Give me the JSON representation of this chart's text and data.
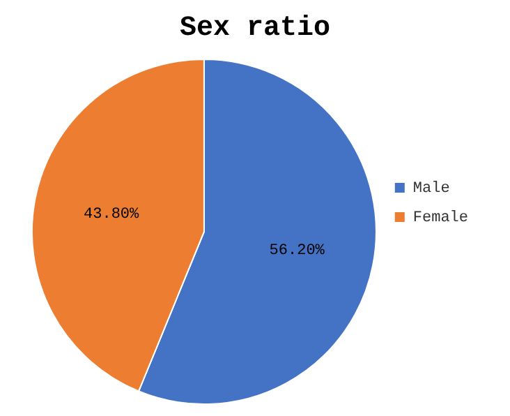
{
  "chart_data": {
    "type": "pie",
    "title": "Sex ratio",
    "categories": [
      "Male",
      "Female"
    ],
    "values": [
      56.2,
      43.8
    ],
    "colors": [
      "#4472c4",
      "#ed7d31"
    ],
    "value_labels": [
      "56.20%",
      "43.80%"
    ],
    "legend": "right"
  }
}
